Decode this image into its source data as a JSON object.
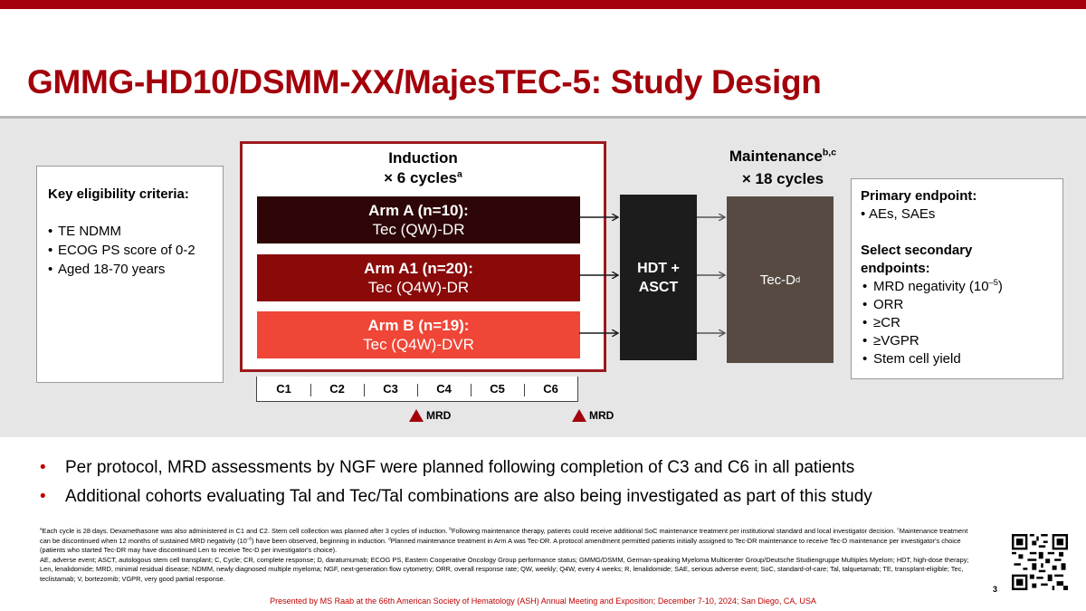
{
  "title": "GMMG-HD10/DSMM-XX/MajesTEC-5: Study Design",
  "eligibility": {
    "heading": "Key eligibility criteria:",
    "items": [
      "TE NDMM",
      "ECOG PS score of 0-2",
      "Aged 18-70 years"
    ]
  },
  "induction": {
    "title": "Induction",
    "cycles_label": "× 6 cycles",
    "cycles_sup": "a",
    "arms": [
      {
        "name": "Arm A (n=10):",
        "regimen": "Tec (QW)-DR"
      },
      {
        "name": "Arm A1 (n=20):",
        "regimen": "Tec (Q4W)-DR"
      },
      {
        "name": "Arm B (n=19):",
        "regimen": "Tec (Q4W)-DVR"
      }
    ],
    "cycles": [
      "C1",
      "C2",
      "C3",
      "C4",
      "C5",
      "C6"
    ],
    "mrd_label": "MRD"
  },
  "hdt": {
    "line1": "HDT +",
    "line2": "ASCT"
  },
  "maintenance": {
    "title": "Maintenance",
    "title_sup": "b,c",
    "cycles_label": "× 18 cycles",
    "regimen": "Tec-D",
    "regimen_sup": "d"
  },
  "endpoints": {
    "primary_heading": "Primary endpoint:",
    "primary_items": [
      "AEs, SAEs"
    ],
    "secondary_heading_1": "Select secondary",
    "secondary_heading_2": "endpoints:",
    "mrd_item": "MRD negativity (10",
    "mrd_exp": "–5",
    "mrd_close": ")",
    "secondary_items": [
      "ORR",
      "≥CR",
      "≥VGPR",
      "Stem cell yield"
    ]
  },
  "bullets": [
    "Per protocol, MRD assessments by NGF were planned following completion of C3 and C6 in all patients",
    "Additional cohorts evaluating Tal and Tec/Tal combinations are also being investigated as part of this study"
  ],
  "footnote": {
    "a": "Each cycle is 28 days. Dexamethasone was also administered in C1 and C2. Stem cell collection was planned after 3 cycles of induction.",
    "b": "Following maintenance therapy, patients could receive additional SoC maintenance treatment per institutional standard and local investigator decision.",
    "c1": "Maintenance treatment can be discontinued when 12 months of sustained MRD negativity (10",
    "c_exp": "–5",
    "c2": ") have been observed, beginning in induction.",
    "d": "Planned maintenance treatment in Arm A was Tec-DR. A protocol amendment permitted patients initially assigned to Tec-DR maintenance to receive Tec-D maintenance per investigator's choice (patients who started Tec-DR may have discontinued Len to receive Tec-D per investigator's choice).",
    "abbreviations": "AE, adverse event; ASCT, autologous stem cell transplant; C, Cycle; CR, complete response; D, daratumumab; ECOG PS, Eastern Cooperative Oncology Group performance status; GMMG/DSMM, German-speaking Myeloma Multicenter Group/Deutsche Studiengruppe Multiples Myelom; HDT, high-dose therapy; Len, lenalidomide; MRD, minimal residual disease; NDMM, newly diagnosed multiple myeloma; NGF, next-generation flow cytometry; ORR, overall response rate; QW, weekly; Q4W, every 4 weeks; R, lenalidomide; SAE, serious adverse event; SoC, standard-of-care; Tal, talquetamab; TE, transplant-eligible; Tec, teclistamab; V, bortezomib; VGPR, very good partial response."
  },
  "presented": "Presented by MS Raab at the 66th American Society of Hematology (ASH) Annual Meeting and Exposition; December 7-10, 2024; San Diego, CA, USA",
  "page_number": "3",
  "colors": {
    "brand_red": "#a3000b",
    "arm_a": "#2e0607",
    "arm_a1": "#8a0a0a",
    "arm_b": "#ef4637",
    "hdt": "#1c1c1c",
    "maintenance": "#574a43"
  }
}
